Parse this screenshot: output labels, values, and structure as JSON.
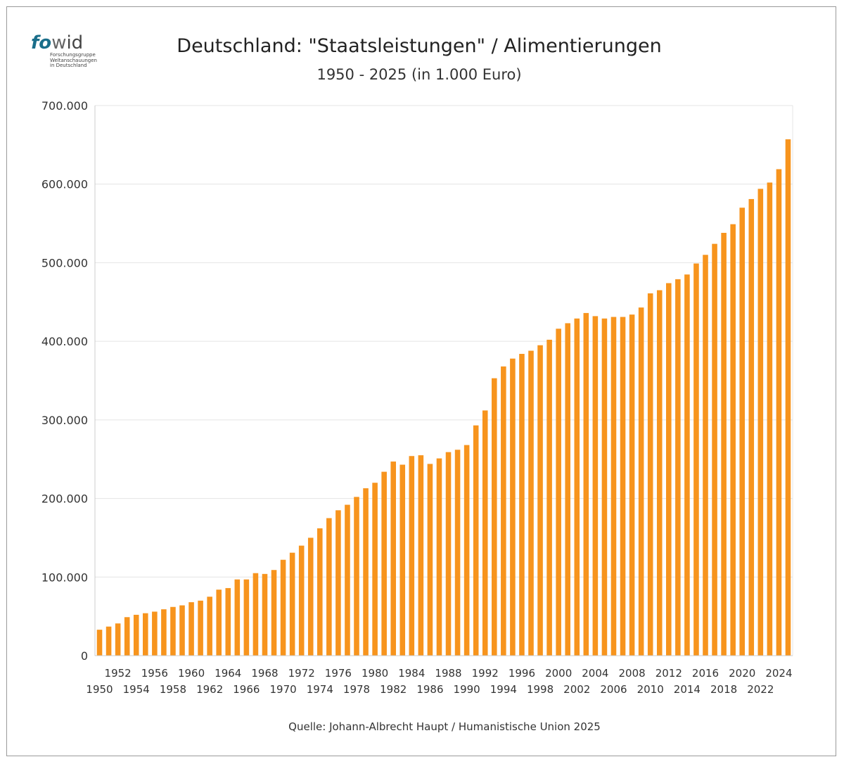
{
  "logo": {
    "mark_fo": "fo",
    "mark_sep": "w",
    "mark_wid": "id",
    "tagline": [
      "Forschungsgruppe",
      "Weltanschauungen",
      "in Deutschland"
    ]
  },
  "colors": {
    "bar": "#f7941d",
    "grid": "#e4e4e4",
    "axis": "#cccccc"
  },
  "chart_data": {
    "type": "bar",
    "title": "Deutschland: \"Staatsleistungen\" / Alimentierungen",
    "subtitle": "1950 - 2025 (in 1.000 Euro)",
    "xlabel": "",
    "ylabel": "",
    "ylim": [
      0,
      700000
    ],
    "yticks": [
      0,
      100000,
      200000,
      300000,
      400000,
      500000,
      600000,
      700000
    ],
    "ytick_labels": [
      "0",
      "100.000",
      "200.000",
      "300.000",
      "400.000",
      "500.000",
      "600.000",
      "700.000"
    ],
    "grid": true,
    "legend": "none",
    "categories": [
      "1950",
      "1951",
      "1952",
      "1953",
      "1954",
      "1955",
      "1956",
      "1957",
      "1958",
      "1959",
      "1960",
      "1961",
      "1962",
      "1963",
      "1964",
      "1965",
      "1966",
      "1967",
      "1968",
      "1969",
      "1970",
      "1971",
      "1972",
      "1973",
      "1974",
      "1975",
      "1976",
      "1977",
      "1978",
      "1979",
      "1980",
      "1981",
      "1982",
      "1983",
      "1984",
      "1985",
      "1986",
      "1987",
      "1988",
      "1989",
      "1990",
      "1991",
      "1992",
      "1993",
      "1994",
      "1995",
      "1996",
      "1997",
      "1998",
      "1999",
      "2000",
      "2001",
      "2002",
      "2003",
      "2004",
      "2005",
      "2006",
      "2007",
      "2008",
      "2009",
      "2010",
      "2011",
      "2012",
      "2013",
      "2014",
      "2015",
      "2016",
      "2017",
      "2018",
      "2019",
      "2020",
      "2021",
      "2022",
      "2023",
      "2024",
      "2025"
    ],
    "values": [
      33000,
      37000,
      41000,
      49000,
      52000,
      54000,
      56000,
      59000,
      62000,
      64000,
      68000,
      70000,
      75000,
      84000,
      86000,
      97000,
      97000,
      105000,
      104000,
      109000,
      122000,
      131000,
      140000,
      150000,
      162000,
      175000,
      185000,
      192000,
      202000,
      213000,
      220000,
      234000,
      247000,
      243000,
      254000,
      255000,
      244000,
      251000,
      259000,
      262000,
      268000,
      293000,
      312000,
      353000,
      368000,
      378000,
      384000,
      388000,
      395000,
      402000,
      416000,
      423000,
      429000,
      436000,
      432000,
      429000,
      431000,
      431000,
      434000,
      443000,
      461000,
      465000,
      474000,
      479000,
      485000,
      499000,
      510000,
      524000,
      538000,
      549000,
      570000,
      581000,
      594000,
      602000,
      619000,
      657000
    ],
    "xtick_labels_upper": [
      "1952",
      "1956",
      "1960",
      "1964",
      "1968",
      "1972",
      "1976",
      "1980",
      "1984",
      "1988",
      "1992",
      "1996",
      "2000",
      "2004",
      "2008",
      "2012",
      "2016",
      "2020",
      "2024"
    ],
    "xtick_labels_lower": [
      "1950",
      "1954",
      "1958",
      "1962",
      "1966",
      "1970",
      "1974",
      "1978",
      "1982",
      "1986",
      "1990",
      "1994",
      "1998",
      "2002",
      "2006",
      "2010",
      "2014",
      "2018",
      "2022"
    ]
  },
  "source": "Quelle: Johann-Albrecht Haupt / Humanistische Union 2025"
}
